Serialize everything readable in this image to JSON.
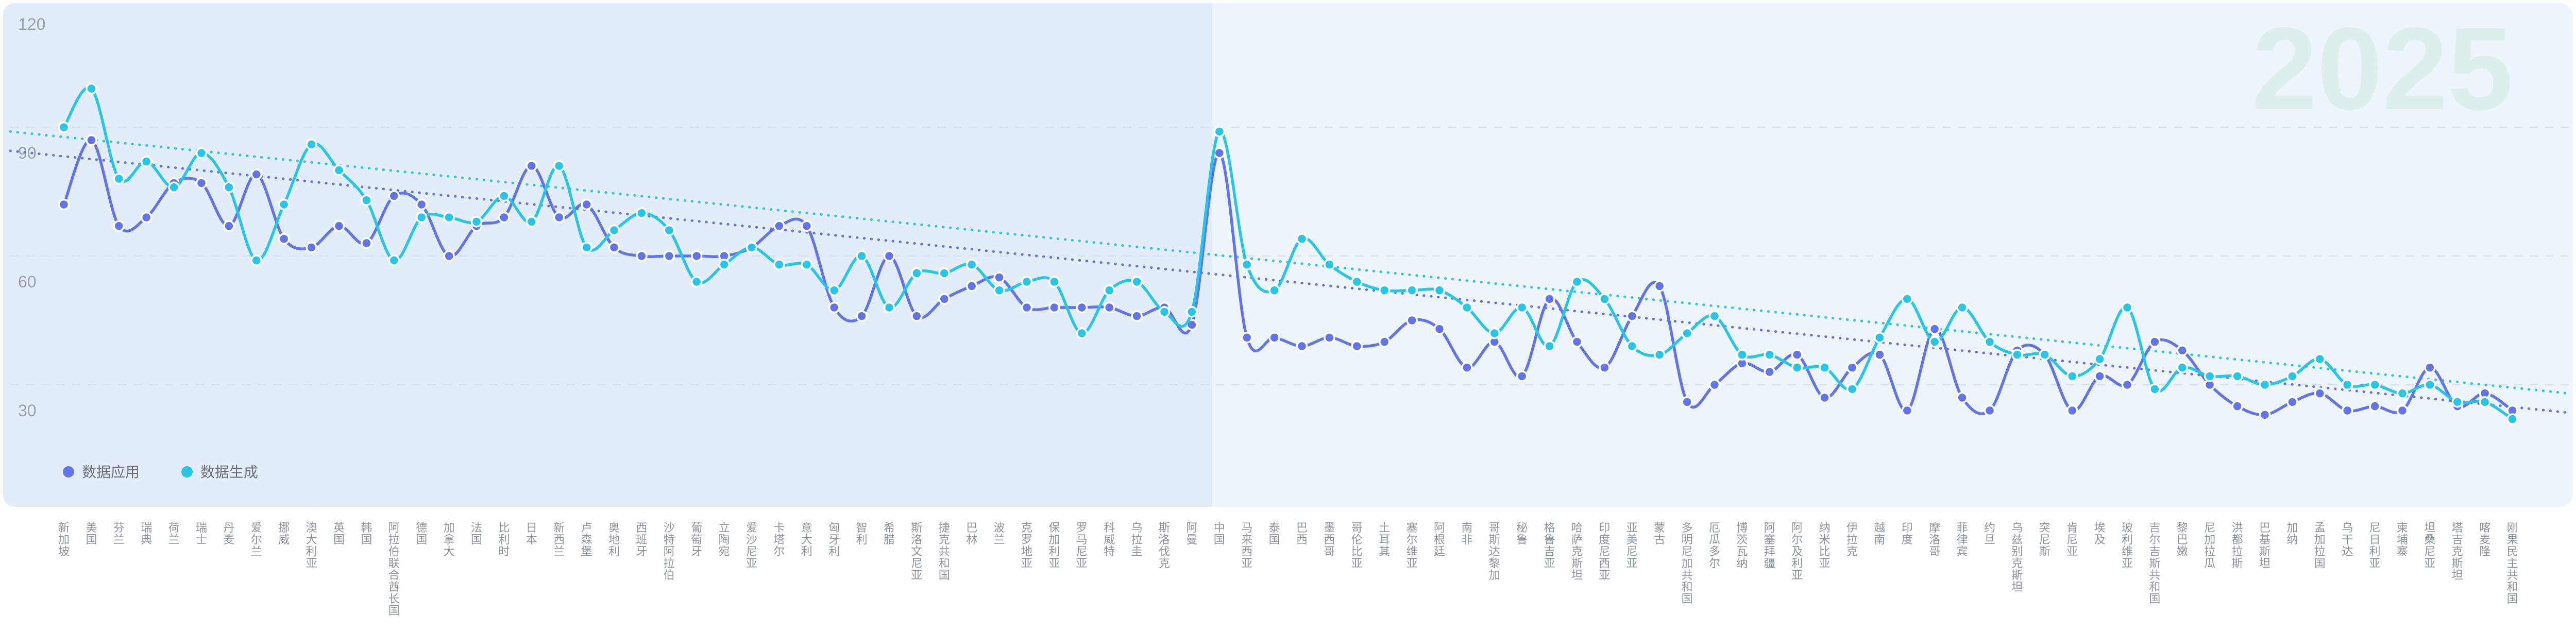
{
  "watermark": "2025",
  "legend": [
    {
      "label": "数据应用",
      "color": "#6274e9"
    },
    {
      "label": "数据生成",
      "color": "#27c6e8"
    }
  ],
  "y_axis": {
    "ticks": [
      120,
      90,
      60,
      30
    ],
    "min": 0,
    "max": 120
  },
  "colors": {
    "panel": "#edf4fb",
    "highlight_panel": "#e3edfa",
    "grid": "#d5deea",
    "x_label": "#8e95a1",
    "y_label": "#9aa1ac",
    "legend_text": "#6b7077",
    "watermark": "#dcefed",
    "series_purple": "#6274e9",
    "series_cyan": "#27c6e8",
    "trend_purple": "#6474e4",
    "trend_cyan": "#2ec6e4"
  },
  "chart_data": {
    "type": "line",
    "title": "",
    "xlabel": "",
    "ylabel": "",
    "ylim": [
      0,
      120
    ],
    "grid": true,
    "legend_position": "bottom-left",
    "smooth": true,
    "highlight_region": {
      "from_category": "新加坡",
      "to_category": "阿曼"
    },
    "categories": [
      "新加坡",
      "美国",
      "芬兰",
      "瑞典",
      "荷兰",
      "瑞士",
      "丹麦",
      "爱尔兰",
      "挪威",
      "澳大利亚",
      "英国",
      "韩国",
      "阿拉伯联合酋长国",
      "德国",
      "加拿大",
      "法国",
      "比利时",
      "日本",
      "新西兰",
      "卢森堡",
      "奥地利",
      "西班牙",
      "沙特阿拉伯",
      "葡萄牙",
      "立陶宛",
      "爱沙尼亚",
      "卡塔尔",
      "意大利",
      "匈牙利",
      "智利",
      "希腊",
      "斯洛文尼亚",
      "捷克共和国",
      "巴林",
      "波兰",
      "克罗地亚",
      "保加利亚",
      "罗马尼亚",
      "科威特",
      "乌拉圭",
      "斯洛伐克",
      "阿曼",
      "中国",
      "马来西亚",
      "泰国",
      "巴西",
      "墨西哥",
      "哥伦比亚",
      "土耳其",
      "塞尔维亚",
      "阿根廷",
      "南非",
      "哥斯达黎加",
      "秘鲁",
      "格鲁吉亚",
      "哈萨克斯坦",
      "印度尼西亚",
      "亚美尼亚",
      "蒙古",
      "多明尼加共和国",
      "厄瓜多尔",
      "博茨瓦纳",
      "阿塞拜疆",
      "阿尔及利亚",
      "纳米比亚",
      "伊拉克",
      "越南",
      "印度",
      "摩洛哥",
      "菲律宾",
      "约旦",
      "乌兹别克斯坦",
      "突尼斯",
      "肯尼亚",
      "埃及",
      "玻利维亚",
      "吉尔吉斯共和国",
      "黎巴嫩",
      "尼加拉瓜",
      "洪都拉斯",
      "巴基斯坦",
      "加纳",
      "孟加拉国",
      "乌干达",
      "尼日利亚",
      "柬埔寨",
      "坦桑尼亚",
      "塔吉克斯坦",
      "喀麦隆",
      "刚果民主共和国"
    ],
    "series": [
      {
        "name": "数据应用",
        "color": "#6274e9",
        "values": [
          72,
          87,
          67,
          69,
          77,
          77,
          67,
          79,
          64,
          62,
          67,
          63,
          74,
          72,
          60,
          67,
          69,
          81,
          69,
          72,
          62,
          60,
          60,
          60,
          60,
          62,
          67,
          67,
          48,
          46,
          60,
          46,
          50,
          53,
          55,
          48,
          48,
          48,
          48,
          46,
          48,
          44,
          84,
          41,
          41,
          39,
          41,
          39,
          40,
          45,
          43,
          34,
          40,
          32,
          50,
          40,
          34,
          46,
          53,
          26,
          30,
          35,
          33,
          37,
          27,
          34,
          37,
          24,
          43,
          27,
          24,
          38,
          37,
          24,
          32,
          30,
          40,
          38,
          30,
          25,
          23,
          26,
          28,
          24,
          25,
          24,
          34,
          25,
          28,
          24
        ]
      },
      {
        "name": "数据生成",
        "color": "#27c6e8",
        "values": [
          90,
          99,
          78,
          82,
          76,
          84,
          76,
          59,
          72,
          86,
          80,
          73,
          59,
          69,
          69,
          68,
          74,
          68,
          81,
          62,
          66,
          70,
          66,
          54,
          58,
          62,
          58,
          58,
          52,
          60,
          48,
          56,
          56,
          58,
          52,
          54,
          54,
          42,
          52,
          54,
          47,
          47,
          89,
          58,
          52,
          64,
          58,
          54,
          52,
          52,
          52,
          48,
          42,
          48,
          39,
          54,
          50,
          39,
          37,
          42,
          46,
          37,
          37,
          34,
          34,
          29,
          41,
          50,
          40,
          48,
          40,
          37,
          37,
          32,
          36,
          48,
          29,
          34,
          32,
          32,
          30,
          32,
          36,
          30,
          30,
          28,
          30,
          26,
          26,
          22
        ]
      }
    ],
    "trend_lines": [
      {
        "series": "数据应用",
        "start_value": 84.5,
        "end_value": 23.5,
        "style": "dotted"
      },
      {
        "series": "数据生成",
        "start_value": 89,
        "end_value": 28,
        "style": "dotted"
      }
    ]
  }
}
